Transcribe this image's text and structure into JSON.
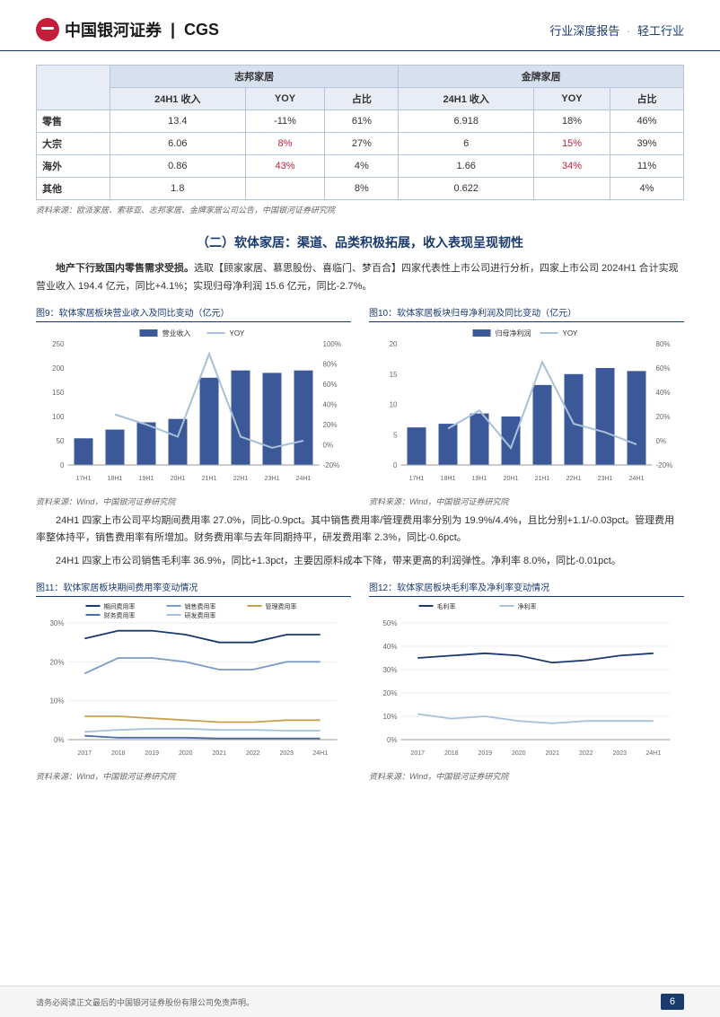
{
  "header": {
    "brand_cn": "中国银河证券",
    "brand_en": "CGS",
    "report_type": "行业深度报告",
    "industry": "轻工行业"
  },
  "table": {
    "group1": "志邦家居",
    "group2": "金牌家居",
    "sub_headers": [
      "24H1 收入",
      "YOY",
      "占比",
      "24H1 收入",
      "YOY",
      "占比"
    ],
    "rows": [
      {
        "label": "零售",
        "v": [
          "13.4",
          "-11%",
          "61%",
          "6.918",
          "18%",
          "46%"
        ],
        "red": [
          false,
          false,
          false,
          false,
          false,
          false
        ]
      },
      {
        "label": "大宗",
        "v": [
          "6.06",
          "8%",
          "27%",
          "6",
          "15%",
          "39%"
        ],
        "red": [
          false,
          true,
          false,
          false,
          true,
          false
        ]
      },
      {
        "label": "海外",
        "v": [
          "0.86",
          "43%",
          "4%",
          "1.66",
          "34%",
          "11%"
        ],
        "red": [
          false,
          true,
          false,
          false,
          true,
          false
        ]
      },
      {
        "label": "其他",
        "v": [
          "1.8",
          "",
          "8%",
          "0.622",
          "",
          "4%"
        ],
        "red": [
          false,
          false,
          false,
          false,
          false,
          false
        ]
      }
    ],
    "source": "资料来源：欧派家居、索菲亚、志邦家居、金牌家居公司公告，中国银河证券研究院"
  },
  "section_title": "（二）软体家居：渠道、品类积极拓展，收入表现呈现韧性",
  "para1": "地产下行致国内零售需求受损。选取【顾家家居、慕思股份、喜临门、梦百合】四家代表性上市公司进行分析，四家上市公司 2024H1 合计实现营业收入 194.4 亿元，同比+4.1%；实现归母净利润 15.6 亿元，同比-2.7%。",
  "para1_bold": "地产下行致国内零售需求受损。",
  "chart9": {
    "title": "图9：软体家居板块营业收入及同比变动（亿元）",
    "type": "bar-line",
    "categories": [
      "17H1",
      "18H1",
      "19H1",
      "20H1",
      "21H1",
      "22H1",
      "23H1",
      "24H1"
    ],
    "bars": [
      55,
      73,
      88,
      95,
      180,
      195,
      190,
      195
    ],
    "line": [
      null,
      30,
      20,
      8,
      90,
      8,
      -3,
      4
    ],
    "bar_label": "营业收入",
    "line_label": "YOY",
    "y1_max": 250,
    "y1_step": 50,
    "y2_min": -20,
    "y2_max": 100,
    "y2_step": 20,
    "bar_color": "#3b5998",
    "line_color": "#a8c0d8",
    "source": "资料来源：Wind，中国银河证券研究院"
  },
  "chart10": {
    "title": "图10：软体家居板块归母净利润及同比变动（亿元）",
    "type": "bar-line",
    "categories": [
      "17H1",
      "18H1",
      "19H1",
      "20H1",
      "21H1",
      "22H1",
      "23H1",
      "24H1"
    ],
    "bars": [
      6.2,
      6.8,
      8.5,
      8.0,
      13.2,
      15.0,
      16.0,
      15.5
    ],
    "line": [
      null,
      10,
      25,
      -6,
      65,
      14,
      7,
      -3
    ],
    "bar_label": "归母净利润",
    "line_label": "YOY",
    "y1_max": 20,
    "y1_step": 5,
    "y2_min": -20,
    "y2_max": 80,
    "y2_step": 20,
    "bar_color": "#3b5998",
    "line_color": "#a8c0d8",
    "source": "资料来源：Wind，中国银河证券研究院"
  },
  "para2": "24H1 四家上市公司平均期间费用率 27.0%，同比-0.9pct。其中销售费用率/管理费用率分别为 19.9%/4.4%，且比分别+1.1/-0.03pct。管理费用率整体持平，销售费用率有所增加。财务费用率与去年同期持平，研发费用率 2.3%，同比-0.6pct。",
  "para3": "24H1 四家上市公司销售毛利率 36.9%，同比+1.3pct，主要因原料成本下降，带来更高的利润弹性。净利率 8.0%，同比-0.01pct。",
  "chart11": {
    "title": "图11：软体家居板块期间费用率变动情况",
    "type": "multi-line",
    "categories": [
      "2017",
      "2018",
      "2019",
      "2020",
      "2021",
      "2022",
      "2023",
      "24H1"
    ],
    "series": [
      {
        "label": "期间费用率",
        "color": "#1a3a6e",
        "values": [
          26,
          28,
          28,
          27,
          25,
          25,
          27,
          27
        ]
      },
      {
        "label": "销售费用率",
        "color": "#7a9cc6",
        "values": [
          17,
          21,
          21,
          20,
          18,
          18,
          20,
          20
        ]
      },
      {
        "label": "管理费用率",
        "color": "#c9a050",
        "values": [
          6,
          6,
          5.5,
          5,
          4.5,
          4.5,
          5,
          5
        ]
      },
      {
        "label": "财务费用率",
        "color": "#4a6fa5",
        "values": [
          1,
          0.5,
          0.5,
          0.5,
          0.3,
          0.3,
          0.3,
          0.3
        ]
      },
      {
        "label": "研发费用率",
        "color": "#a8c0d8",
        "values": [
          2,
          2.5,
          2.8,
          2.8,
          2.5,
          2.5,
          2.3,
          2.3
        ]
      }
    ],
    "y_max": 30,
    "y_step": 10,
    "source": "资料来源：Wind，中国银河证券研究院"
  },
  "chart12": {
    "title": "图12：软体家居板块毛利率及净利率变动情况",
    "type": "multi-line",
    "categories": [
      "2017",
      "2018",
      "2019",
      "2020",
      "2021",
      "2022",
      "2023",
      "24H1"
    ],
    "series": [
      {
        "label": "毛利率",
        "color": "#1a3a6e",
        "values": [
          35,
          36,
          37,
          36,
          33,
          34,
          36,
          37
        ]
      },
      {
        "label": "净利率",
        "color": "#a8c0d8",
        "values": [
          11,
          9,
          10,
          8,
          7,
          8,
          8,
          8
        ]
      }
    ],
    "y_max": 50,
    "y_step": 10,
    "source": "资料来源：Wind，中国银河证券研究院"
  },
  "footer": {
    "disclaimer": "请务必阅读正文最后的中国银河证券股份有限公司免责声明。",
    "page": "6"
  }
}
